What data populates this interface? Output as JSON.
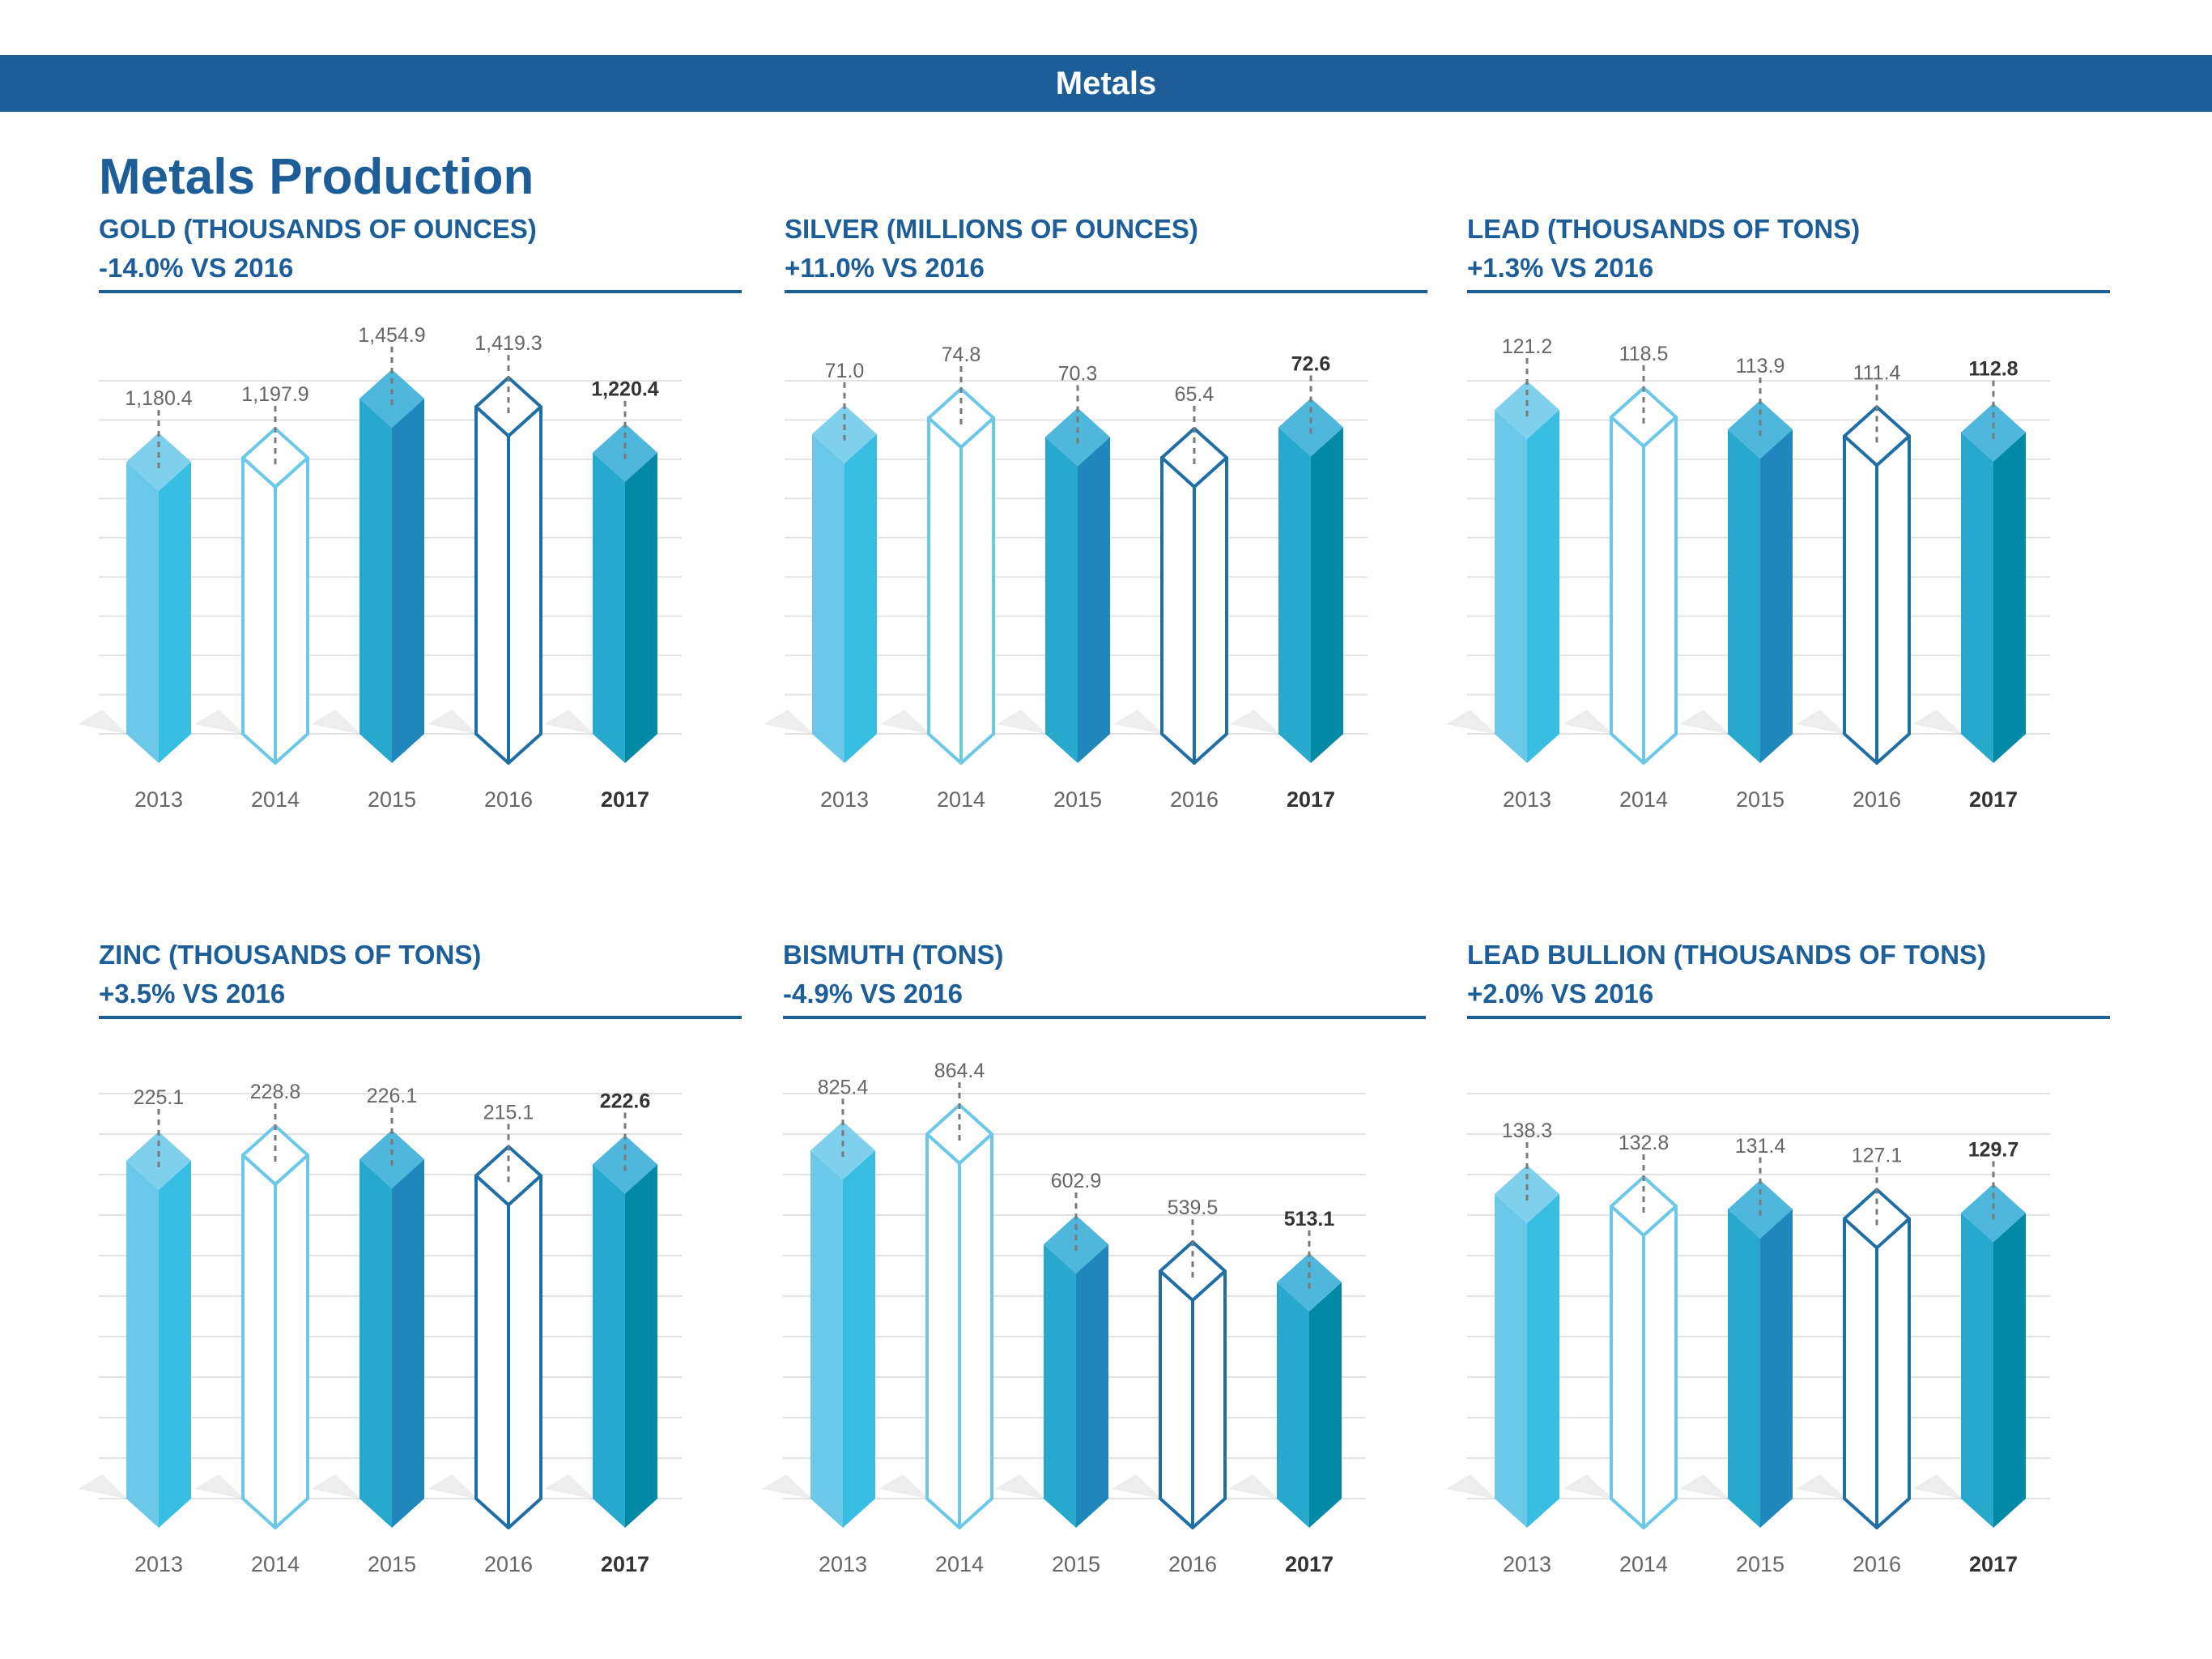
{
  "header": {
    "banner": "Metals",
    "title": "Metals Production"
  },
  "colors": {
    "banner": "#1d5e99",
    "grid": "#e3e3e3",
    "palette": [
      {
        "top": "#7fd0ec",
        "left": "#6bc8e9",
        "right": "#38bde3",
        "outline": false
      },
      {
        "top": "#ffffff",
        "left": "#ffffff",
        "right": "#ffffff",
        "stroke": "#6bc8e9",
        "outline": true
      },
      {
        "top": "#4fb6dc",
        "left": "#26a9cc",
        "right": "#1f87bb",
        "outline": false
      },
      {
        "top": "#ffffff",
        "left": "#ffffff",
        "right": "#ffffff",
        "stroke": "#1f6fa5",
        "outline": true
      },
      {
        "top": "#4fb6dc",
        "left": "#26a9cc",
        "right": "#0189a6",
        "outline": false
      }
    ]
  },
  "chart_data": [
    {
      "type": "bar",
      "title": "GOLD (THOUSANDS OF OUNCES)",
      "change": "-14.0% VS 2016",
      "categories": [
        "2013",
        "2014",
        "2015",
        "2016",
        "2017"
      ],
      "values": [
        1180.4,
        1197.9,
        1454.9,
        1419.3,
        1220.4
      ],
      "labels": [
        "1,180.4",
        "1,197.9",
        "1,454.9",
        "1,419.3",
        "1,220.4"
      ],
      "highlight": "2017",
      "grid": true
    },
    {
      "type": "bar",
      "title": "SILVER (MILLIONS OF OUNCES)",
      "change": "+11.0% VS 2016",
      "categories": [
        "2013",
        "2014",
        "2015",
        "2016",
        "2017"
      ],
      "values": [
        71.0,
        74.8,
        70.3,
        65.4,
        72.6
      ],
      "labels": [
        "71.0",
        "74.8",
        "70.3",
        "65.4",
        "72.6"
      ],
      "highlight": "2017",
      "grid": true
    },
    {
      "type": "bar",
      "title": "LEAD (THOUSANDS OF TONS)",
      "change": "+1.3% VS 2016",
      "categories": [
        "2013",
        "2014",
        "2015",
        "2016",
        "2017"
      ],
      "values": [
        121.2,
        118.5,
        113.9,
        111.4,
        112.8
      ],
      "labels": [
        "121.2",
        "118.5",
        "113.9",
        "111.4",
        "112.8"
      ],
      "highlight": "2017",
      "grid": true
    },
    {
      "type": "bar",
      "title": "ZINC (THOUSANDS OF TONS)",
      "change": "+3.5% VS 2016",
      "categories": [
        "2013",
        "2014",
        "2015",
        "2016",
        "2017"
      ],
      "values": [
        225.1,
        228.8,
        226.1,
        215.1,
        222.6
      ],
      "labels": [
        "225.1",
        "228.8",
        "226.1",
        "215.1",
        "222.6"
      ],
      "highlight": "2017",
      "grid": true
    },
    {
      "type": "bar",
      "title": "BISMUTH (TONS)",
      "change": "-4.9% VS 2016",
      "categories": [
        "2013",
        "2014",
        "2015",
        "2016",
        "2017"
      ],
      "values": [
        825.4,
        864.4,
        602.9,
        539.5,
        513.1
      ],
      "labels": [
        "825.4",
        "864.4",
        "602.9",
        "539.5",
        "513.1"
      ],
      "highlight": "2017",
      "grid": true
    },
    {
      "type": "bar",
      "title": "LEAD BULLION (THOUSANDS OF TONS)",
      "change": "+2.0% VS 2016",
      "categories": [
        "2013",
        "2014",
        "2015",
        "2016",
        "2017"
      ],
      "values": [
        138.3,
        132.8,
        131.4,
        127.1,
        129.7
      ],
      "labels": [
        "138.3",
        "132.8",
        "131.4",
        "127.1",
        "129.7"
      ],
      "highlight": "2017",
      "grid": true
    }
  ]
}
